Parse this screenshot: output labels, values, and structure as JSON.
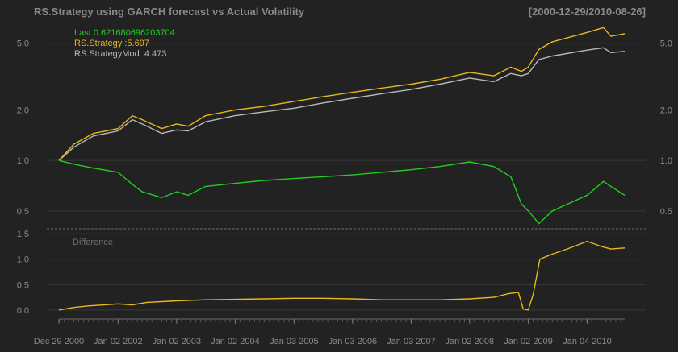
{
  "chart_data": [
    {
      "type": "line",
      "title": "RS.Strategy using GARCH forecast vs Actual Volatility",
      "date_range_label": "[2000-12-29/2010-08-26]",
      "y_scale": "log",
      "ylim": [
        0.4,
        6.5
      ],
      "y_ticks": [
        "0.5",
        "1.0",
        "2.0",
        "5.0"
      ],
      "grid": true,
      "legend_position": "top-left",
      "legend": [
        "Last 0.621680696203704",
        "RS.Strategy :5.697",
        "RS.StrategyMod :4.473"
      ],
      "x": [
        "2000-12-29",
        "2001-04-01",
        "2001-08-01",
        "2002-01-02",
        "2002-04-01",
        "2002-06-01",
        "2002-10-01",
        "2003-01-02",
        "2003-03-15",
        "2003-07-01",
        "2004-01-02",
        "2004-07-01",
        "2005-01-03",
        "2005-07-01",
        "2006-01-03",
        "2006-07-01",
        "2007-01-03",
        "2007-07-01",
        "2008-01-02",
        "2008-06-01",
        "2008-09-15",
        "2008-11-20",
        "2009-01-02",
        "2009-03-09",
        "2009-06-01",
        "2010-01-04",
        "2010-04-15",
        "2010-06-01",
        "2010-08-26"
      ],
      "series": [
        {
          "name": "Last",
          "color": "#22cc22",
          "values": [
            1.0,
            0.95,
            0.9,
            0.85,
            0.72,
            0.65,
            0.6,
            0.65,
            0.62,
            0.7,
            0.73,
            0.76,
            0.78,
            0.8,
            0.82,
            0.85,
            0.88,
            0.92,
            0.98,
            0.92,
            0.8,
            0.55,
            0.5,
            0.42,
            0.5,
            0.62,
            0.75,
            0.7,
            0.62
          ]
        },
        {
          "name": "RS.Strategy",
          "color": "#e8b820",
          "values": [
            1.0,
            1.25,
            1.45,
            1.55,
            1.85,
            1.75,
            1.55,
            1.65,
            1.6,
            1.85,
            2.0,
            2.1,
            2.25,
            2.4,
            2.55,
            2.7,
            2.85,
            3.05,
            3.35,
            3.2,
            3.6,
            3.4,
            3.6,
            4.6,
            5.1,
            5.8,
            6.2,
            5.5,
            5.7
          ]
        },
        {
          "name": "RS.StrategyMod",
          "color": "#b8b8b8",
          "values": [
            1.0,
            1.2,
            1.4,
            1.5,
            1.75,
            1.65,
            1.45,
            1.52,
            1.5,
            1.7,
            1.85,
            1.95,
            2.05,
            2.2,
            2.35,
            2.5,
            2.65,
            2.85,
            3.1,
            2.95,
            3.3,
            3.2,
            3.3,
            4.0,
            4.2,
            4.55,
            4.7,
            4.4,
            4.47
          ]
        }
      ]
    },
    {
      "type": "line",
      "label": "Difference",
      "ylim": [
        -0.05,
        1.55
      ],
      "y_ticks": [
        "0.0",
        "0.5",
        "1.0",
        "1.5"
      ],
      "grid": true,
      "x": [
        "2000-12-29",
        "2001-04-01",
        "2001-07-01",
        "2002-01-02",
        "2002-04-01",
        "2002-07-01",
        "2003-01-02",
        "2003-07-01",
        "2004-01-02",
        "2004-07-01",
        "2005-01-03",
        "2005-07-01",
        "2006-01-03",
        "2006-07-01",
        "2007-01-03",
        "2007-07-01",
        "2008-01-02",
        "2008-06-01",
        "2008-09-01",
        "2008-11-01",
        "2008-12-01",
        "2009-01-02",
        "2009-02-01",
        "2009-03-15",
        "2009-06-01",
        "2009-09-01",
        "2010-01-04",
        "2010-04-01",
        "2010-06-01",
        "2010-08-26"
      ],
      "series": [
        {
          "name": "Difference",
          "color": "#e8b820",
          "values": [
            0.0,
            0.05,
            0.08,
            0.12,
            0.1,
            0.15,
            0.18,
            0.2,
            0.21,
            0.22,
            0.23,
            0.23,
            0.22,
            0.2,
            0.2,
            0.2,
            0.22,
            0.25,
            0.32,
            0.35,
            0.02,
            0.0,
            0.3,
            1.0,
            1.1,
            1.2,
            1.35,
            1.25,
            1.2,
            1.22
          ]
        }
      ]
    }
  ],
  "x_axis_ticks": [
    "Dec 29 2000",
    "Jan 02 2002",
    "Jan 02 2003",
    "Jan 02 2004",
    "Jan 03 2005",
    "Jan 03 2006",
    "Jan 03 2007",
    "Jan 02 2008",
    "Jan 02 2009",
    "Jan 04 2010"
  ],
  "x_axis_tick_dates": [
    "2000-12-29",
    "2002-01-02",
    "2003-01-02",
    "2004-01-02",
    "2005-01-03",
    "2006-01-03",
    "2007-01-03",
    "2008-01-02",
    "2009-01-02",
    "2010-01-04"
  ]
}
